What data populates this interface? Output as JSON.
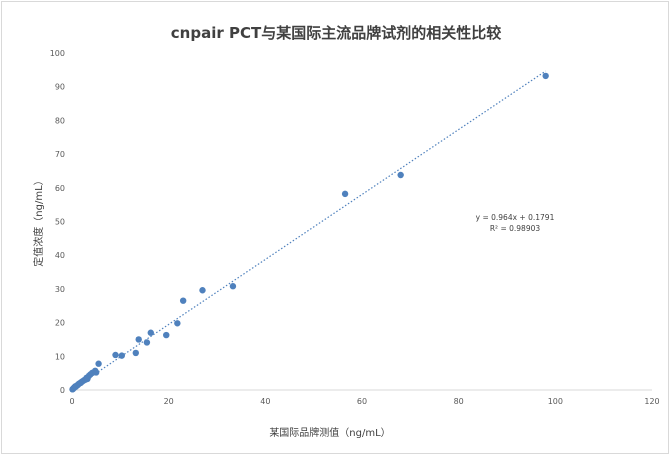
{
  "chart_data": {
    "type": "scatter",
    "title": "cnpair PCT与某国际主流品牌试剂的相关性比较",
    "xlabel": "某国际品牌测值（ng/mL）",
    "ylabel": "定值浓度（ng/mL）",
    "xlim": [
      0,
      120
    ],
    "ylim": [
      0,
      100
    ],
    "x_ticks": [
      "0",
      "20",
      "40",
      "60",
      "80",
      "100",
      "120"
    ],
    "y_ticks": [
      "0",
      "10",
      "20",
      "30",
      "40",
      "50",
      "60",
      "70",
      "80",
      "90",
      "100"
    ],
    "grid": false,
    "legend": "none",
    "marker_color": "#4f81bd",
    "trendline": {
      "type": "linear",
      "slope": 0.964,
      "intercept": 0.1791,
      "style": "dotted",
      "color": "#4f81bd",
      "equation_label": "y = 0.964x + 0.1791",
      "r2_label": "R² = 0.98903"
    },
    "series": [
      {
        "points": [
          [
            0.1,
            0.2
          ],
          [
            0.2,
            0.3
          ],
          [
            0.3,
            0.5
          ],
          [
            0.4,
            0.6
          ],
          [
            0.5,
            0.8
          ],
          [
            0.6,
            0.9
          ],
          [
            0.7,
            1.1
          ],
          [
            0.8,
            1.0
          ],
          [
            1.0,
            1.3
          ],
          [
            1.2,
            1.5
          ],
          [
            1.4,
            1.8
          ],
          [
            1.6,
            2.0
          ],
          [
            1.8,
            2.1
          ],
          [
            2.0,
            2.4
          ],
          [
            2.2,
            2.6
          ],
          [
            2.5,
            2.9
          ],
          [
            2.8,
            3.1
          ],
          [
            3.0,
            3.6
          ],
          [
            3.2,
            3.3
          ],
          [
            3.5,
            4.2
          ],
          [
            3.8,
            4.6
          ],
          [
            4.2,
            5.1
          ],
          [
            4.8,
            5.7
          ],
          [
            5.0,
            5.2
          ],
          [
            5.5,
            7.8
          ],
          [
            9.0,
            10.4
          ],
          [
            10.3,
            10.2
          ],
          [
            13.2,
            11.0
          ],
          [
            13.8,
            15.0
          ],
          [
            15.5,
            14.1
          ],
          [
            16.3,
            17.0
          ],
          [
            19.5,
            16.3
          ],
          [
            21.8,
            19.8
          ],
          [
            23.0,
            26.5
          ],
          [
            27.0,
            29.6
          ],
          [
            33.3,
            30.8
          ],
          [
            56.5,
            58.2
          ],
          [
            68.0,
            63.8
          ],
          [
            98.0,
            93.2
          ]
        ]
      }
    ]
  }
}
